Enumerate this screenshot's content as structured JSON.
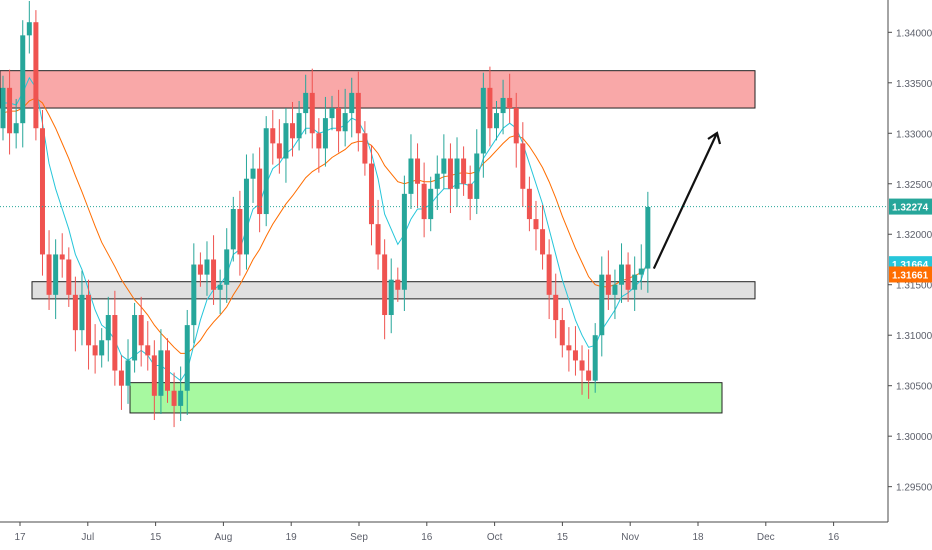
{
  "chart_data": {
    "type": "candlestick",
    "title": "",
    "xlabel": "",
    "ylabel": "",
    "ylim": [
      1.2915,
      1.3432
    ],
    "y_ticks": [
      "1.29500",
      "1.30000",
      "1.30500",
      "1.31000",
      "1.31500",
      "1.32000",
      "1.32500",
      "1.33000",
      "1.33500",
      "1.34000"
    ],
    "x_ticks": [
      "17",
      "Jul",
      "15",
      "Aug",
      "19",
      "Sep",
      "16",
      "Oct",
      "15",
      "Nov",
      "18",
      "Dec",
      "16"
    ],
    "price_labels": [
      {
        "text": "1.32274",
        "value": 1.32274,
        "color": "#26a69a"
      },
      {
        "text": "1.31664",
        "value": 1.31664,
        "color": "#26c6da"
      },
      {
        "text": "1.31661",
        "value": 1.31661,
        "color": "#ff6d00"
      }
    ],
    "zones": [
      {
        "name": "resistance",
        "color": "#f9a8a8",
        "from_index": 0,
        "to_index": 108,
        "low": 1.3325,
        "high": 1.3362
      },
      {
        "name": "pivot",
        "color": "#e0e0e0",
        "from_index": 4,
        "to_index": 108,
        "low": 1.3136,
        "high": 1.3153
      },
      {
        "name": "support",
        "color": "#a7f9a0",
        "from_index": 18,
        "to_index": 103,
        "low": 1.3023,
        "high": 1.3053
      }
    ],
    "closes": [
      1.3345,
      1.33,
      1.331,
      1.3397,
      1.341,
      1.3305,
      1.318,
      1.314,
      1.318,
      1.3175,
      1.314,
      1.3105,
      1.314,
      1.309,
      1.308,
      1.3095,
      1.312,
      1.3065,
      1.305,
      1.3075,
      1.312,
      1.309,
      1.308,
      1.304,
      1.3085,
      1.3045,
      1.303,
      1.3045,
      1.311,
      1.317,
      1.316,
      1.3175,
      1.3145,
      1.315,
      1.3185,
      1.3225,
      1.318,
      1.3255,
      1.3265,
      1.322,
      1.3305,
      1.329,
      1.3275,
      1.331,
      1.3295,
      1.332,
      1.334,
      1.33,
      1.3285,
      1.3315,
      1.3325,
      1.3302,
      1.332,
      1.334,
      1.33,
      1.327,
      1.321,
      1.318,
      1.312,
      1.3155,
      1.3145,
      1.324,
      1.3275,
      1.325,
      1.3215,
      1.3245,
      1.326,
      1.3275,
      1.3245,
      1.3275,
      1.325,
      1.3235,
      1.328,
      1.3345,
      1.3305,
      1.332,
      1.3335,
      1.3325,
      1.329,
      1.3245,
      1.3215,
      1.3205,
      1.318,
      1.314,
      1.3115,
      1.309,
      1.3085,
      1.3075,
      1.3065,
      1.3055,
      1.31,
      1.316,
      1.314,
      1.315,
      1.317,
      1.3145,
      1.316,
      1.3166,
      1.3227
    ],
    "opens": [
      1.3305,
      1.3345,
      1.33,
      1.331,
      1.3397,
      1.341,
      1.3305,
      1.318,
      1.314,
      1.318,
      1.3175,
      1.314,
      1.3105,
      1.314,
      1.309,
      1.308,
      1.3095,
      1.312,
      1.3065,
      1.305,
      1.3075,
      1.312,
      1.309,
      1.308,
      1.304,
      1.3085,
      1.3045,
      1.303,
      1.3045,
      1.311,
      1.317,
      1.316,
      1.3175,
      1.3145,
      1.315,
      1.3185,
      1.3225,
      1.318,
      1.3255,
      1.3265,
      1.322,
      1.3305,
      1.329,
      1.3275,
      1.331,
      1.3295,
      1.332,
      1.334,
      1.33,
      1.3285,
      1.3315,
      1.3325,
      1.3302,
      1.332,
      1.334,
      1.33,
      1.327,
      1.321,
      1.318,
      1.312,
      1.3155,
      1.3145,
      1.324,
      1.3275,
      1.325,
      1.3215,
      1.3245,
      1.326,
      1.3275,
      1.3245,
      1.3275,
      1.325,
      1.3235,
      1.328,
      1.3345,
      1.3305,
      1.332,
      1.3335,
      1.3325,
      1.329,
      1.3245,
      1.3215,
      1.3205,
      1.318,
      1.314,
      1.3115,
      1.309,
      1.3085,
      1.3075,
      1.3065,
      1.3055,
      1.31,
      1.316,
      1.314,
      1.315,
      1.317,
      1.3145,
      1.316,
      1.3166
    ],
    "ma_fast": [
      1.333,
      1.333,
      1.3328,
      1.334,
      1.3355,
      1.3345,
      1.331,
      1.327,
      1.3245,
      1.3225,
      1.3205,
      1.318,
      1.3165,
      1.3145,
      1.3125,
      1.311,
      1.3105,
      1.3095,
      1.308,
      1.3075,
      1.308,
      1.3085,
      1.308,
      1.307,
      1.307,
      1.3065,
      1.306,
      1.3055,
      1.3065,
      1.309,
      1.3115,
      1.3135,
      1.3145,
      1.315,
      1.316,
      1.318,
      1.3185,
      1.3205,
      1.3225,
      1.323,
      1.325,
      1.3265,
      1.327,
      1.328,
      1.3285,
      1.3295,
      1.3305,
      1.3305,
      1.33,
      1.3302,
      1.3305,
      1.3305,
      1.3308,
      1.3315,
      1.3312,
      1.33,
      1.328,
      1.3255,
      1.322,
      1.3205,
      1.319,
      1.32,
      1.3215,
      1.3225,
      1.3225,
      1.323,
      1.3238,
      1.3245,
      1.3245,
      1.325,
      1.325,
      1.3248,
      1.3255,
      1.3275,
      1.3285,
      1.3295,
      1.3305,
      1.331,
      1.3305,
      1.329,
      1.327,
      1.325,
      1.323,
      1.3205,
      1.318,
      1.3155,
      1.3135,
      1.3115,
      1.31,
      1.3088,
      1.309,
      1.3105,
      1.3115,
      1.3125,
      1.3138,
      1.3142,
      1.3148,
      1.3155,
      1.3175
    ],
    "ma_slow": [
      1.332,
      1.3322,
      1.3322,
      1.3325,
      1.3332,
      1.3335,
      1.333,
      1.3318,
      1.3305,
      1.329,
      1.3275,
      1.3258,
      1.3242,
      1.3225,
      1.3208,
      1.3192,
      1.318,
      1.3168,
      1.3155,
      1.3145,
      1.3135,
      1.3128,
      1.312,
      1.311,
      1.3102,
      1.3095,
      1.3088,
      1.3082,
      1.3082,
      1.3088,
      1.3095,
      1.3105,
      1.3113,
      1.312,
      1.3128,
      1.314,
      1.315,
      1.3162,
      1.3175,
      1.3185,
      1.3198,
      1.321,
      1.322,
      1.323,
      1.3238,
      1.3247,
      1.3256,
      1.3262,
      1.3266,
      1.327,
      1.3276,
      1.328,
      1.3284,
      1.329,
      1.3292,
      1.3292,
      1.3288,
      1.328,
      1.3268,
      1.326,
      1.3252,
      1.325,
      1.3252,
      1.3254,
      1.3252,
      1.3252,
      1.3254,
      1.3257,
      1.3258,
      1.326,
      1.3261,
      1.326,
      1.3262,
      1.327,
      1.3276,
      1.3283,
      1.329,
      1.3296,
      1.3298,
      1.3295,
      1.3287,
      1.3277,
      1.3266,
      1.3252,
      1.3236,
      1.3218,
      1.3202,
      1.3186,
      1.3172,
      1.3158,
      1.315,
      1.3148,
      1.3148,
      1.315,
      1.3154,
      1.3156,
      1.3159,
      1.3162,
      1.317
    ],
    "projection": {
      "from": [
        98,
        1.3166
      ],
      "to": [
        103,
        1.331
      ]
    }
  }
}
